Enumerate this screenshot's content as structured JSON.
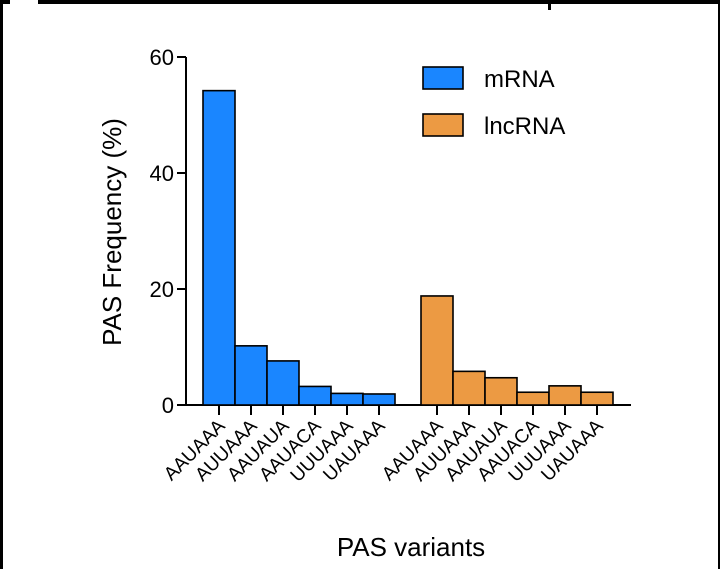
{
  "chart_data": {
    "type": "bar",
    "title": "",
    "xlabel": "PAS variants",
    "ylabel": "PAS Frequency (%)",
    "ylim": [
      0,
      60
    ],
    "yticks": [
      0,
      20,
      40,
      60
    ],
    "grid": false,
    "legend_position": "top-right",
    "series": [
      {
        "name": "mRNA",
        "color": "#1a86ff",
        "categories": [
          "AAUAAA",
          "AUUAAA",
          "AAUAUA",
          "AAUACA",
          "UUUAAA",
          "UAUAAA"
        ],
        "values": [
          54.2,
          10.2,
          7.6,
          3.2,
          2.0,
          1.9
        ]
      },
      {
        "name": "lncRNA",
        "color": "#ec9a43",
        "categories": [
          "AAUAAA",
          "AUUAAA",
          "AAUAUA",
          "AAUACA",
          "UUUAAA",
          "UAUAAA"
        ],
        "values": [
          18.8,
          5.8,
          4.7,
          2.2,
          3.3,
          2.2
        ]
      }
    ]
  }
}
